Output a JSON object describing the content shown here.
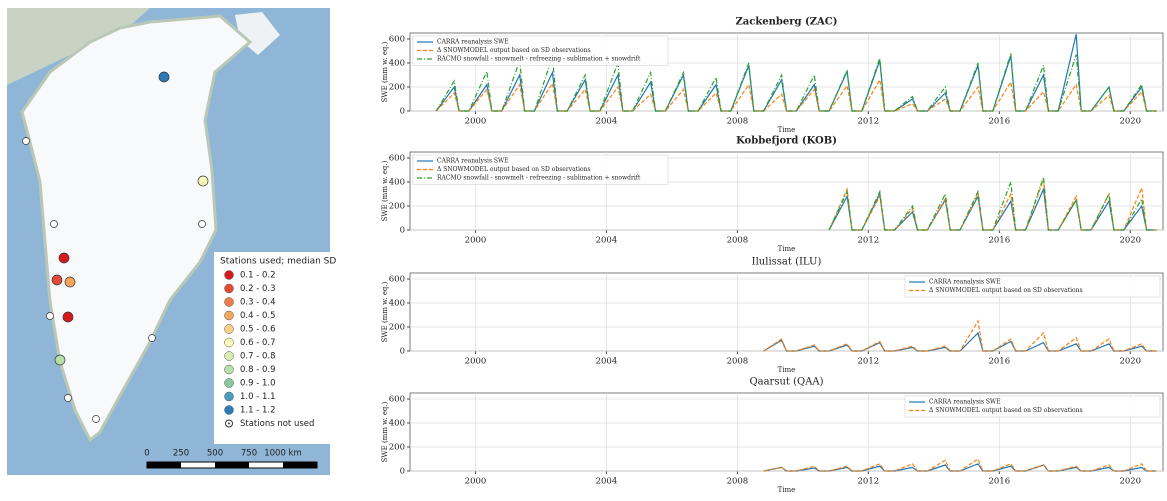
{
  "map": {
    "legend": {
      "title": "Stations used; median SD",
      "items": [
        {
          "label": "0.1 - 0.2",
          "color": "#d7191c"
        },
        {
          "label": "0.2 - 0.3",
          "color": "#e34a33"
        },
        {
          "label": "0.3 - 0.4",
          "color": "#f07c4a"
        },
        {
          "label": "0.4 - 0.5",
          "color": "#f7a659"
        },
        {
          "label": "0.5 - 0.6",
          "color": "#fbd08a"
        },
        {
          "label": "0.6 - 0.7",
          "color": "#fdfcb8"
        },
        {
          "label": "0.7 - 0.8",
          "color": "#d8eeb0"
        },
        {
          "label": "0.8 - 0.9",
          "color": "#b8e0a6"
        },
        {
          "label": "0.9 - 1.0",
          "color": "#8cc7a0"
        },
        {
          "label": "1.0 - 1.1",
          "color": "#4a9cc0"
        },
        {
          "label": "1.1 - 1.2",
          "color": "#2b7bb8"
        }
      ],
      "not_used": "Stations not used"
    },
    "scale": [
      "0",
      "250",
      "500",
      "750",
      "1000 km"
    ]
  },
  "chart_data": [
    {
      "type": "line",
      "title": "Zackenberg (ZAC)",
      "xlabel": "Time",
      "ylabel": "SWE (mm w. eq.)",
      "legend": "upper left",
      "grid": true,
      "xlim": [
        1998,
        2021
      ],
      "ylim": [
        0,
        650
      ],
      "xticks": [
        2000,
        2004,
        2008,
        2012,
        2016,
        2020
      ],
      "yticks": [
        0,
        200,
        400,
        600
      ],
      "x": [
        1998.8,
        1999.35,
        1999.5,
        1999.8,
        2000.35,
        2000.5,
        2000.8,
        2001.35,
        2001.5,
        2001.8,
        2002.35,
        2002.5,
        2002.8,
        2003.35,
        2003.5,
        2003.8,
        2004.35,
        2004.5,
        2004.8,
        2005.35,
        2005.5,
        2005.8,
        2006.35,
        2006.5,
        2006.8,
        2007.35,
        2007.5,
        2007.8,
        2008.35,
        2008.5,
        2008.8,
        2009.35,
        2009.5,
        2009.8,
        2010.35,
        2010.5,
        2010.8,
        2011.35,
        2011.5,
        2011.8,
        2012.35,
        2012.5,
        2012.8,
        2013.35,
        2013.5,
        2013.8,
        2014.35,
        2014.5,
        2014.8,
        2015.35,
        2015.5,
        2015.8,
        2016.35,
        2016.5,
        2016.8,
        2017.35,
        2017.5,
        2017.8,
        2018.35,
        2018.5,
        2018.8,
        2019.35,
        2019.5,
        2019.8,
        2020.35,
        2020.5,
        2020.8
      ],
      "series": [
        {
          "name": "CARRA reanalysis SWE",
          "color": "#1f77b4",
          "linestyle": "-",
          "values": [
            0,
            200,
            0,
            0,
            220,
            0,
            0,
            300,
            0,
            0,
            320,
            0,
            0,
            260,
            0,
            0,
            300,
            0,
            0,
            240,
            0,
            0,
            300,
            0,
            0,
            220,
            0,
            0,
            380,
            0,
            0,
            260,
            0,
            0,
            220,
            0,
            0,
            330,
            0,
            0,
            420,
            0,
            0,
            100,
            0,
            0,
            150,
            0,
            0,
            380,
            0,
            0,
            460,
            0,
            0,
            300,
            0,
            0,
            640,
            0,
            0,
            200,
            0,
            0,
            200,
            0,
            0
          ]
        },
        {
          "name": "Δ SNOWMODEL output based on SD observations",
          "color": "#ff7f0e",
          "linestyle": "--",
          "values": [
            0,
            150,
            0,
            0,
            180,
            0,
            0,
            220,
            0,
            0,
            230,
            0,
            0,
            180,
            0,
            0,
            200,
            0,
            0,
            140,
            0,
            0,
            180,
            0,
            0,
            150,
            0,
            0,
            220,
            0,
            0,
            140,
            0,
            0,
            180,
            0,
            0,
            210,
            0,
            0,
            260,
            0,
            0,
            60,
            0,
            0,
            100,
            0,
            0,
            200,
            0,
            0,
            240,
            0,
            0,
            160,
            0,
            0,
            220,
            0,
            0,
            130,
            0,
            0,
            160,
            0,
            0
          ]
        },
        {
          "name": "RACMO snowfall - snowmelt - refreezing - sublimation + snowdrift",
          "color": "#2ca02c",
          "linestyle": "-.",
          "values": [
            0,
            250,
            0,
            0,
            330,
            0,
            0,
            420,
            0,
            0,
            450,
            0,
            0,
            300,
            0,
            0,
            400,
            0,
            0,
            320,
            0,
            0,
            320,
            0,
            0,
            280,
            0,
            0,
            400,
            0,
            0,
            300,
            0,
            0,
            300,
            0,
            0,
            340,
            0,
            0,
            440,
            0,
            0,
            120,
            0,
            0,
            200,
            0,
            0,
            400,
            0,
            0,
            480,
            0,
            0,
            380,
            0,
            0,
            470,
            0,
            0,
            200,
            0,
            0,
            220,
            0,
            0
          ]
        }
      ]
    },
    {
      "type": "line",
      "title": "Kobbefjord (KOB)",
      "xlabel": "Time",
      "ylabel": "SWE (mm w. eq.)",
      "legend": "upper left",
      "grid": true,
      "xlim": [
        1998,
        2021
      ],
      "ylim": [
        0,
        650
      ],
      "xticks": [
        2000,
        2004,
        2008,
        2012,
        2016,
        2020
      ],
      "yticks": [
        0,
        200,
        400,
        600
      ],
      "x": [
        2010.8,
        2011.35,
        2011.5,
        2011.8,
        2012.35,
        2012.5,
        2012.8,
        2013.35,
        2013.5,
        2013.8,
        2014.35,
        2014.5,
        2014.8,
        2015.35,
        2015.5,
        2015.8,
        2016.35,
        2016.5,
        2016.8,
        2017.35,
        2017.5,
        2017.8,
        2018.35,
        2018.5,
        2018.8,
        2019.35,
        2019.5,
        2019.8,
        2020.35,
        2020.5,
        2020.8
      ],
      "series": [
        {
          "name": "CARRA reanalysis SWE",
          "color": "#1f77b4",
          "linestyle": "-",
          "values": [
            0,
            280,
            0,
            0,
            300,
            0,
            0,
            150,
            0,
            0,
            250,
            0,
            0,
            280,
            0,
            0,
            240,
            0,
            0,
            340,
            0,
            0,
            250,
            0,
            0,
            240,
            0,
            0,
            200,
            0,
            0
          ]
        },
        {
          "name": "Δ SNOWMODEL output based on SD observations",
          "color": "#ff7f0e",
          "linestyle": "--",
          "values": [
            0,
            340,
            0,
            0,
            280,
            0,
            0,
            180,
            0,
            0,
            260,
            0,
            0,
            300,
            0,
            0,
            300,
            0,
            0,
            420,
            0,
            0,
            280,
            0,
            0,
            300,
            0,
            0,
            350,
            0,
            0
          ]
        },
        {
          "name": "RACMO snowfall - snowmelt - refreezing - sublimation + snowdrift",
          "color": "#2ca02c",
          "linestyle": "-.",
          "values": [
            0,
            320,
            0,
            0,
            320,
            0,
            0,
            200,
            0,
            0,
            300,
            0,
            0,
            320,
            0,
            0,
            400,
            0,
            0,
            440,
            0,
            0,
            250,
            0,
            0,
            300,
            0,
            0,
            260,
            0,
            0
          ]
        }
      ]
    },
    {
      "type": "line",
      "title": "Ilulissat (ILU)",
      "xlabel": "Time",
      "ylabel": "SWE (mm w. eq.)",
      "legend": "upper right",
      "grid": true,
      "xlim": [
        1998,
        2021
      ],
      "ylim": [
        0,
        650
      ],
      "xticks": [
        2000,
        2004,
        2008,
        2012,
        2016,
        2020
      ],
      "yticks": [
        0,
        200,
        400,
        600
      ],
      "x": [
        2008.8,
        2009.35,
        2009.5,
        2009.8,
        2010.35,
        2010.5,
        2010.8,
        2011.35,
        2011.5,
        2011.8,
        2012.35,
        2012.5,
        2012.8,
        2013.35,
        2013.5,
        2013.8,
        2014.35,
        2014.5,
        2014.8,
        2015.35,
        2015.5,
        2015.8,
        2016.35,
        2016.5,
        2016.8,
        2017.35,
        2017.5,
        2017.8,
        2018.35,
        2018.5,
        2018.8,
        2019.35,
        2019.5,
        2019.8,
        2020.35,
        2020.5,
        2020.8
      ],
      "series": [
        {
          "name": "CARRA reanalysis SWE",
          "color": "#1f77b4",
          "linestyle": "-",
          "values": [
            0,
            90,
            0,
            0,
            40,
            0,
            0,
            50,
            0,
            0,
            70,
            0,
            0,
            30,
            0,
            0,
            30,
            0,
            0,
            150,
            0,
            0,
            80,
            0,
            0,
            70,
            0,
            0,
            60,
            0,
            0,
            60,
            0,
            0,
            40,
            0,
            0
          ]
        },
        {
          "name": "Δ SNOWMODEL output based on SD observations",
          "color": "#ff7f0e",
          "linestyle": "--",
          "values": [
            0,
            100,
            0,
            0,
            50,
            0,
            0,
            60,
            0,
            0,
            80,
            0,
            0,
            40,
            0,
            0,
            40,
            0,
            0,
            250,
            0,
            0,
            100,
            0,
            0,
            150,
            0,
            0,
            110,
            0,
            0,
            100,
            0,
            0,
            60,
            0,
            0
          ]
        }
      ]
    },
    {
      "type": "line",
      "title": "Qaarsut (QAA)",
      "xlabel": "Time",
      "ylabel": "SWE (mm w. eq.)",
      "legend": "upper right",
      "grid": true,
      "xlim": [
        1998,
        2021
      ],
      "ylim": [
        0,
        650
      ],
      "xticks": [
        2000,
        2004,
        2008,
        2012,
        2016,
        2020
      ],
      "yticks": [
        0,
        200,
        400,
        600
      ],
      "x": [
        2008.8,
        2009.35,
        2009.5,
        2009.8,
        2010.35,
        2010.5,
        2010.8,
        2011.35,
        2011.5,
        2011.8,
        2012.35,
        2012.5,
        2012.8,
        2013.35,
        2013.5,
        2013.8,
        2014.35,
        2014.5,
        2014.8,
        2015.35,
        2015.5,
        2015.8,
        2016.35,
        2016.5,
        2016.8,
        2017.35,
        2017.5,
        2017.8,
        2018.35,
        2018.5,
        2018.8,
        2019.35,
        2019.5,
        2019.8,
        2020.35,
        2020.5,
        2020.8
      ],
      "series": [
        {
          "name": "CARRA reanalysis SWE",
          "color": "#1f77b4",
          "linestyle": "-",
          "values": [
            0,
            30,
            0,
            0,
            25,
            0,
            0,
            30,
            0,
            0,
            40,
            0,
            0,
            30,
            0,
            0,
            50,
            0,
            0,
            60,
            0,
            0,
            40,
            0,
            0,
            50,
            0,
            0,
            30,
            0,
            0,
            30,
            0,
            0,
            30,
            0,
            0
          ]
        },
        {
          "name": "Δ SNOWMODEL output based on SD observations",
          "color": "#ff7f0e",
          "linestyle": "--",
          "values": [
            0,
            30,
            0,
            0,
            40,
            0,
            0,
            40,
            0,
            0,
            60,
            0,
            0,
            60,
            0,
            0,
            90,
            0,
            0,
            100,
            0,
            0,
            60,
            0,
            0,
            50,
            0,
            0,
            40,
            0,
            0,
            50,
            0,
            0,
            60,
            0,
            0
          ]
        }
      ]
    }
  ]
}
